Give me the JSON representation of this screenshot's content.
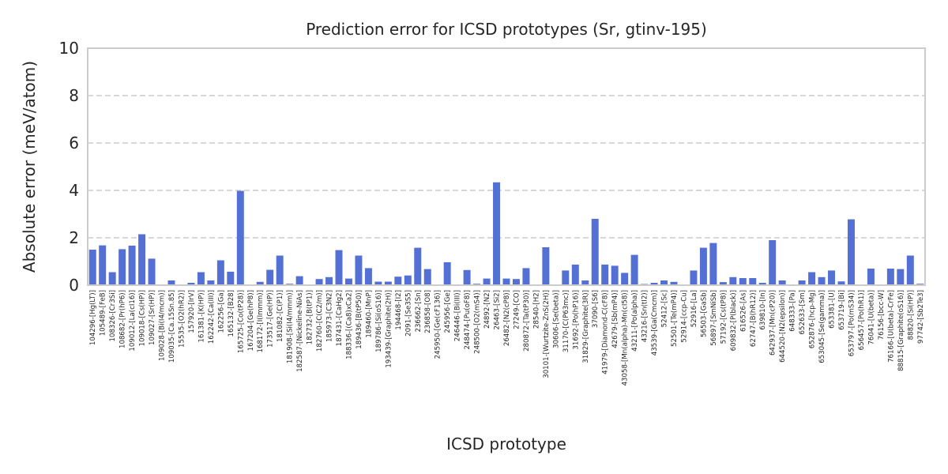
{
  "chart_data": {
    "type": "bar",
    "title": "Prediction error for ICSD prototypes (Sr, gtinv-195)",
    "xlabel": "ICSD prototype",
    "ylabel": "Absolute error (meV/atom)",
    "ylim": [
      0,
      10
    ],
    "yticks": [
      0,
      2,
      4,
      6,
      8,
      10
    ],
    "grid": "horizontal dashed",
    "colors": {
      "bar": "#5470d4",
      "grid": "#cccccc",
      "axis": "#cccccc",
      "text": "#262626"
    },
    "categories": [
      "104296-[Hg(LT)]",
      "105489-[FeB]",
      "108326-[Cr3Si]",
      "108682-[Pr(hP6)]",
      "109012-[La(cI16)]",
      "109018-[Cs(HP)]",
      "109027-[Sr(HP)]",
      "109028-[Bi(I4/mcm)]",
      "109035-[Ca.15Sn.85]",
      "15535-[O2(hR2)]",
      "157920-[IrV]",
      "161381-[K(HP)]",
      "162242-[Ca(III)]",
      "162256-[Ga]",
      "165132-[B28]",
      "165725-[Co(tP28)]",
      "167204-[Ge(hP8)]",
      "168172-[I(Immm)]",
      "173517-[Ge(HP)]",
      "181082-[C(P1)]",
      "181908-[Si(I4/mmm)]",
      "182587-[Nickeline-NiAs]",
      "182732-[B(tP1)]",
      "182760-[C(C2/m)]",
      "185973-[C3N2]",
      "187431-[CaHg2]",
      "188336-[(Ca8)xCa2]",
      "189436-[B(tP50)]",
      "189460-[MnP]",
      "189786-[Si(oS16)]",
      "193439-[Graphite(2H)]",
      "194468-[I2]",
      "2091-[Se3S5]",
      "236662-[Sn]",
      "236858-[O8]",
      "245950-[Ge(cF136)]",
      "245956-[Ge]",
      "246446-[Bi(III)]",
      "248474-[Pu(oF8)]",
      "248500-[O2(mS4)]",
      "24892-[N2]",
      "26463-[Si2]",
      "26482-[N2(cP8)]",
      "27249-[CO]",
      "280872-[Ta(tP30)]",
      "28540-[H2]",
      "30101-[Wurtzite-ZnS(2H)]",
      "30606-[Se(beta)]",
      "31170-[C(P63mc)]",
      "31692-[Po(hP16)]",
      "31829-[Graphite(3R)]",
      "37090-[S6]",
      "41979-[Diamond-C(cF8)]",
      "42679-[Sb(mP4)]",
      "43058-[Mn(alpha)-Mn(cI58)]",
      "43211-[Po(alpha)]",
      "43216-[Sn(tI2)]",
      "43539-[Ga(Cmcm)]",
      "52412-[Sc]",
      "52501-[Te(mP4)]",
      "52914-[ccp-Cu]",
      "52916-[La]",
      "56503-[GaSb]",
      "56897-[SmNiSb]",
      "57192-[Cs(tP8)]",
      "609832-[P(black)]",
      "616526-[As]",
      "62747-[B(hR12)]",
      "639810-[In]",
      "642937-[Mn(cP20)]",
      "644520-[N2(epsilon)]",
      "648333-[Pa]",
      "652633-[Sm]",
      "652876-[hcp-Mg]",
      "653045-[Se(gamma)]",
      "653381-[U]",
      "653719-[Bi]",
      "653797-[Po(mS34)]",
      "656457-[Po(hR1)]",
      "76041-[U(beta)]",
      "76156-[bcc-W]",
      "76166-[U(beta)-CrFe]",
      "88815-[Graphite(oS16)]",
      "88820-[Si(HP)]",
      "97742-[Sb2Te3]"
    ],
    "values": [
      1.5,
      1.68,
      0.55,
      1.52,
      1.67,
      2.15,
      1.12,
      0.0,
      0.2,
      0.02,
      0.1,
      0.55,
      0.2,
      1.05,
      0.57,
      3.98,
      0.0,
      0.14,
      0.65,
      1.25,
      0.06,
      0.38,
      0.0,
      0.26,
      0.34,
      1.48,
      0.28,
      1.25,
      0.72,
      0.15,
      0.15,
      0.36,
      0.41,
      1.58,
      0.68,
      0.0,
      0.97,
      0.0,
      0.64,
      0.06,
      0.28,
      4.34,
      0.28,
      0.26,
      0.72,
      0.0,
      1.6,
      0.0,
      0.62,
      0.87,
      0.2,
      2.8,
      0.87,
      0.82,
      0.52,
      1.28,
      0.05,
      0.1,
      0.2,
      0.14,
      0.0,
      0.62,
      1.58,
      1.78,
      0.13,
      0.34,
      0.3,
      0.3,
      0.1,
      1.9,
      0.2,
      0.0,
      0.2,
      0.55,
      0.34,
      0.62,
      0.16,
      2.78,
      0.0,
      0.7,
      0.0,
      0.7,
      0.68,
      1.25,
      0.06
    ]
  }
}
